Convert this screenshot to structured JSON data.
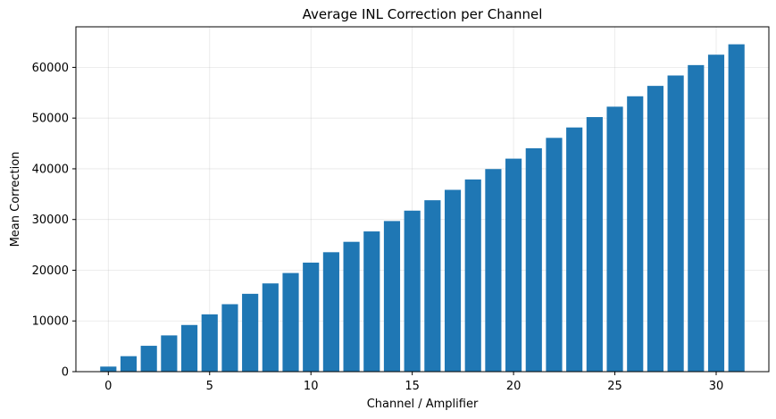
{
  "chart_data": {
    "type": "bar",
    "title": "Average INL Correction per Channel",
    "xlabel": "Channel / Amplifier",
    "ylabel": "Mean Correction",
    "x": [
      0,
      1,
      2,
      3,
      4,
      5,
      6,
      7,
      8,
      9,
      10,
      11,
      12,
      13,
      14,
      15,
      16,
      17,
      18,
      19,
      20,
      21,
      22,
      23,
      24,
      25,
      26,
      27,
      28,
      29,
      30,
      31
    ],
    "values": [
      1000,
      3050,
      5100,
      7150,
      9200,
      11300,
      13300,
      15350,
      17400,
      19450,
      21500,
      23550,
      25600,
      27650,
      29700,
      31750,
      33800,
      35850,
      37900,
      39950,
      42000,
      44050,
      46100,
      48150,
      50200,
      52250,
      54300,
      56350,
      58400,
      60450,
      62500,
      64550
    ],
    "xlim": [
      -1.6,
      32.6
    ],
    "ylim": [
      0,
      68000
    ],
    "xticks": [
      0,
      5,
      10,
      15,
      20,
      25,
      30
    ],
    "xtick_labels": [
      "0",
      "5",
      "10",
      "15",
      "20",
      "25",
      "30"
    ],
    "yticks": [
      0,
      10000,
      20000,
      30000,
      40000,
      50000,
      60000
    ],
    "ytick_labels": [
      "0",
      "10000",
      "20000",
      "30000",
      "40000",
      "50000",
      "60000"
    ],
    "bar_color": "#1f77b4",
    "grid": true
  }
}
